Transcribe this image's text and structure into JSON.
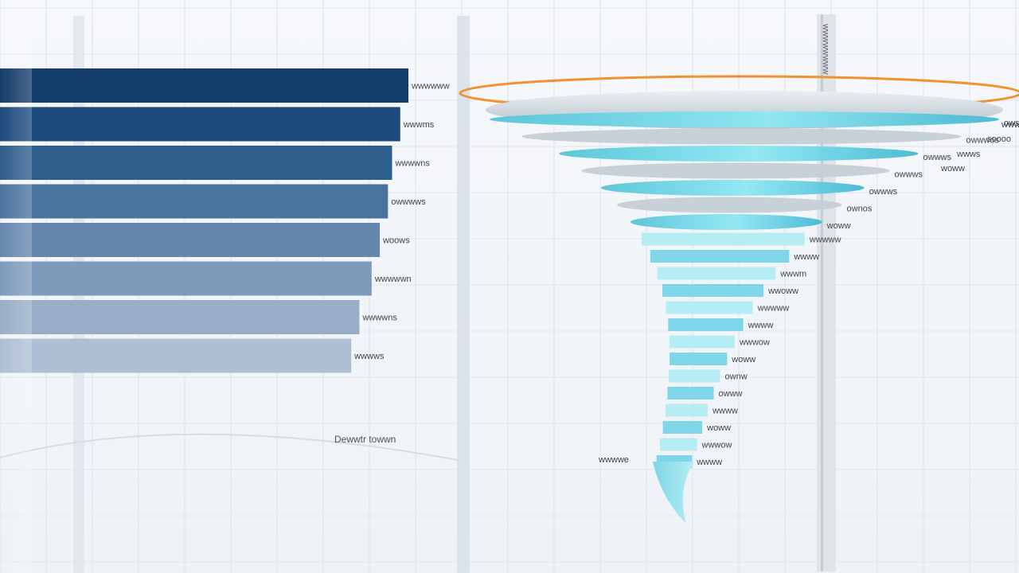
{
  "chart_data": [
    {
      "type": "bar",
      "orientation": "horizontal",
      "categories": [
        "",
        "",
        "",
        "",
        "",
        "",
        "",
        ""
      ],
      "values": [
        100,
        98,
        96,
        95,
        93,
        91,
        88,
        86
      ],
      "value_labels": [
        "wwwwww",
        "wwwms",
        "wwwwns",
        "owwwws",
        "woows",
        "wwwwwn",
        "wwwwns",
        "wwwws"
      ],
      "colors": [
        "#143d6b",
        "#1c4a7c",
        "#2f5d8c",
        "#4a739d",
        "#6587ad",
        "#7e9bbb",
        "#98aec8",
        "#aebfd3"
      ],
      "caption": "Dewwtr towwn"
    },
    {
      "type": "funnel",
      "top_labels": [
        "wwww",
        "soooo",
        "wwws",
        "woww"
      ],
      "stage_labels": [
        "owsswww",
        "owwwos",
        "owwws",
        "owwws",
        "owwws",
        "ownos",
        "woww",
        "wwwww",
        "wwww",
        "wwwm",
        "wwoww",
        "wwwww",
        "wwww",
        "wwwow",
        "woww",
        "ownw",
        "owww",
        "wwww",
        "woww",
        "wwwow",
        "wwww"
      ],
      "stage_widths": [
        1.0,
        0.97,
        0.93,
        0.9,
        0.87,
        0.84,
        0.81,
        0.78,
        0.75,
        0.72,
        0.69,
        0.66,
        0.63,
        0.6,
        0.57,
        0.54,
        0.51,
        0.48,
        0.45,
        0.42,
        0.39
      ],
      "side_label": "wwwwwwww",
      "post_label": "wwwwe"
    }
  ]
}
